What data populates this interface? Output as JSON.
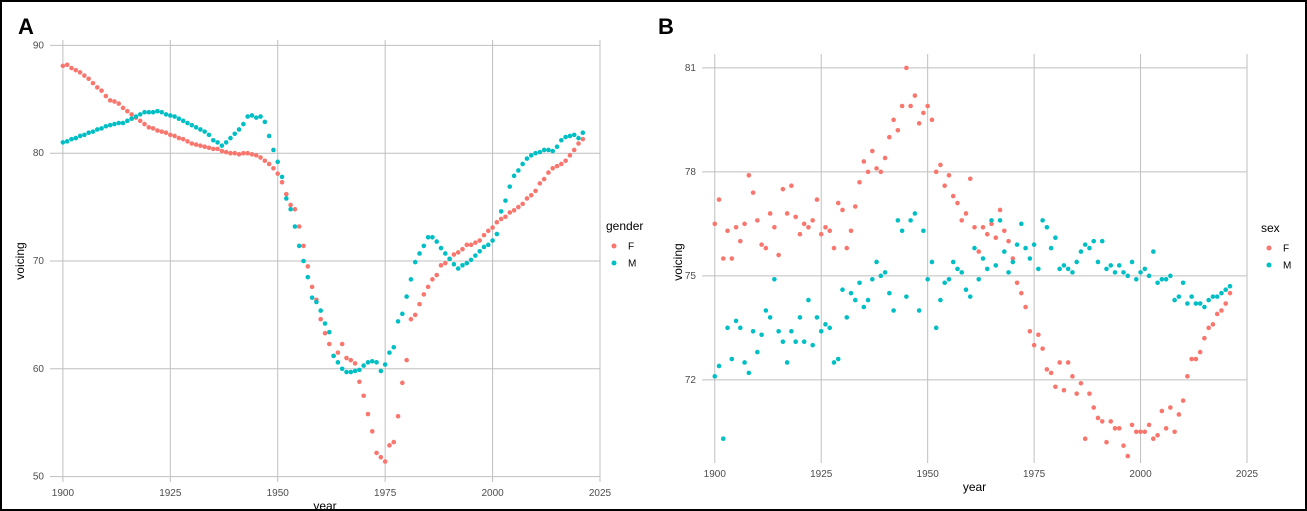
{
  "panels": {
    "a_label": "A",
    "b_label": "B"
  },
  "colors": {
    "F": "#F8766D",
    "M": "#00BFC4",
    "grid": "#bfbfbf"
  },
  "chart_data": [
    {
      "type": "scatter",
      "title": "",
      "xlabel": "year",
      "ylabel": "voicing",
      "xlim": [
        1897,
        2025
      ],
      "ylim": [
        49.5,
        90.5
      ],
      "xticks": [
        1900,
        1925,
        1950,
        1975,
        2000,
        2025
      ],
      "yticks": [
        50,
        60,
        70,
        80,
        90
      ],
      "grid": true,
      "legend": {
        "title": "gender",
        "position": "right",
        "entries": [
          "F",
          "M"
        ]
      },
      "series": [
        {
          "name": "F",
          "x": [
            1900,
            1901,
            1902,
            1903,
            1904,
            1905,
            1906,
            1907,
            1908,
            1909,
            1910,
            1911,
            1912,
            1913,
            1914,
            1915,
            1916,
            1917,
            1918,
            1919,
            1920,
            1921,
            1922,
            1923,
            1924,
            1925,
            1926,
            1927,
            1928,
            1929,
            1930,
            1931,
            1932,
            1933,
            1934,
            1935,
            1936,
            1937,
            1938,
            1939,
            1940,
            1941,
            1942,
            1943,
            1944,
            1945,
            1946,
            1947,
            1948,
            1949,
            1950,
            1951,
            1952,
            1953,
            1954,
            1955,
            1956,
            1957,
            1958,
            1959,
            1960,
            1961,
            1962,
            1963,
            1964,
            1965,
            1966,
            1967,
            1968,
            1969,
            1970,
            1971,
            1972,
            1973,
            1974,
            1975,
            1976,
            1977,
            1978,
            1979,
            1980,
            1981,
            1982,
            1983,
            1984,
            1985,
            1986,
            1987,
            1988,
            1989,
            1990,
            1991,
            1992,
            1993,
            1994,
            1995,
            1996,
            1997,
            1998,
            1999,
            2000,
            2001,
            2002,
            2003,
            2004,
            2005,
            2006,
            2007,
            2008,
            2009,
            2010,
            2011,
            2012,
            2013,
            2014,
            2015,
            2016,
            2017,
            2018,
            2019,
            2020,
            2021
          ],
          "y": [
            88.1,
            88.2,
            87.9,
            87.7,
            87.5,
            87.2,
            86.9,
            86.5,
            86.1,
            85.8,
            85.3,
            84.9,
            84.8,
            84.6,
            84.2,
            83.9,
            83.6,
            83.3,
            83.0,
            82.7,
            82.4,
            82.3,
            82.1,
            82.0,
            81.9,
            81.7,
            81.6,
            81.4,
            81.3,
            81.1,
            80.9,
            80.8,
            80.7,
            80.6,
            80.5,
            80.4,
            80.4,
            80.2,
            80.1,
            80.0,
            80.0,
            79.9,
            80.0,
            80.0,
            79.9,
            79.8,
            79.6,
            79.3,
            79.0,
            78.6,
            78.1,
            77.3,
            76.2,
            75.2,
            74.8,
            73.2,
            71.4,
            69.5,
            67.6,
            66.4,
            64.6,
            63.3,
            62.3,
            61.2,
            61.5,
            62.3,
            61.0,
            60.8,
            60.5,
            58.8,
            57.5,
            55.8,
            54.2,
            52.2,
            51.8,
            51.4,
            52.9,
            53.2,
            55.6,
            58.7,
            60.8,
            64.6,
            65.0,
            66.0,
            66.9,
            67.6,
            68.3,
            68.7,
            69.6,
            69.8,
            70.2,
            70.6,
            70.8,
            71.1,
            71.5,
            71.5,
            71.7,
            71.9,
            72.4,
            72.8,
            73.1,
            73.6,
            73.9,
            74.1,
            74.5,
            74.7,
            75.0,
            75.3,
            75.8,
            76.1,
            76.5,
            77.2,
            77.6,
            78.2,
            78.6,
            78.8,
            79.0,
            79.3,
            79.8,
            80.3,
            80.9,
            81.3
          ]
        },
        {
          "name": "M",
          "x": [
            1900,
            1901,
            1902,
            1903,
            1904,
            1905,
            1906,
            1907,
            1908,
            1909,
            1910,
            1911,
            1912,
            1913,
            1914,
            1915,
            1916,
            1917,
            1918,
            1919,
            1920,
            1921,
            1922,
            1923,
            1924,
            1925,
            1926,
            1927,
            1928,
            1929,
            1930,
            1931,
            1932,
            1933,
            1934,
            1935,
            1936,
            1937,
            1938,
            1939,
            1940,
            1941,
            1942,
            1943,
            1944,
            1945,
            1946,
            1947,
            1948,
            1949,
            1950,
            1951,
            1952,
            1953,
            1954,
            1955,
            1956,
            1957,
            1958,
            1959,
            1960,
            1961,
            1962,
            1963,
            1964,
            1965,
            1966,
            1967,
            1968,
            1969,
            1970,
            1971,
            1972,
            1973,
            1974,
            1975,
            1976,
            1977,
            1978,
            1979,
            1980,
            1981,
            1982,
            1983,
            1984,
            1985,
            1986,
            1987,
            1988,
            1989,
            1990,
            1991,
            1992,
            1993,
            1994,
            1995,
            1996,
            1997,
            1998,
            1999,
            2000,
            2001,
            2002,
            2003,
            2004,
            2005,
            2006,
            2007,
            2008,
            2009,
            2010,
            2011,
            2012,
            2013,
            2014,
            2015,
            2016,
            2017,
            2018,
            2019,
            2020,
            2021
          ],
          "y": [
            81.0,
            81.1,
            81.3,
            81.4,
            81.6,
            81.7,
            81.9,
            82.0,
            82.2,
            82.3,
            82.5,
            82.6,
            82.7,
            82.8,
            82.8,
            83.0,
            83.2,
            83.4,
            83.6,
            83.8,
            83.8,
            83.8,
            83.9,
            83.8,
            83.6,
            83.5,
            83.4,
            83.2,
            83.0,
            82.8,
            82.6,
            82.4,
            82.2,
            82.0,
            81.7,
            81.2,
            81.0,
            80.7,
            81.0,
            81.4,
            81.8,
            82.2,
            82.7,
            83.4,
            83.5,
            83.3,
            83.4,
            82.9,
            81.6,
            80.3,
            79.2,
            77.8,
            75.8,
            74.8,
            73.2,
            71.4,
            70.0,
            68.5,
            66.6,
            66.2,
            65.4,
            64.2,
            63.4,
            61.2,
            60.6,
            60.0,
            59.7,
            59.7,
            59.8,
            59.9,
            60.3,
            60.6,
            60.7,
            60.6,
            59.8,
            60.4,
            61.5,
            62.0,
            64.4,
            65.1,
            66.7,
            68.3,
            69.9,
            70.7,
            71.4,
            72.2,
            72.2,
            71.8,
            71.2,
            70.7,
            70.2,
            69.7,
            69.3,
            69.6,
            69.8,
            70.1,
            70.5,
            70.9,
            71.3,
            71.5,
            71.9,
            72.5,
            74.6,
            75.6,
            76.9,
            77.9,
            78.4,
            79.0,
            79.5,
            79.8,
            80.0,
            80.1,
            80.3,
            80.3,
            80.2,
            80.6,
            81.2,
            81.5,
            81.6,
            81.7,
            81.4,
            81.9
          ]
        }
      ]
    },
    {
      "type": "scatter",
      "title": "",
      "xlabel": "year",
      "ylabel": "voicing",
      "xlim": [
        1897,
        2025
      ],
      "ylim": [
        69.6,
        81.4
      ],
      "xticks": [
        1900,
        1925,
        1950,
        1975,
        2000,
        2025
      ],
      "yticks": [
        72,
        75,
        78,
        81
      ],
      "grid": true,
      "legend": {
        "title": "sex",
        "position": "right",
        "entries": [
          "F",
          "M"
        ]
      },
      "series": [
        {
          "name": "F",
          "x": [
            1900,
            1901,
            1902,
            1903,
            1904,
            1905,
            1906,
            1907,
            1908,
            1909,
            1910,
            1911,
            1912,
            1913,
            1914,
            1915,
            1916,
            1917,
            1918,
            1919,
            1920,
            1921,
            1922,
            1923,
            1924,
            1925,
            1926,
            1927,
            1928,
            1929,
            1930,
            1931,
            1932,
            1933,
            1934,
            1935,
            1936,
            1937,
            1938,
            1939,
            1940,
            1941,
            1942,
            1943,
            1944,
            1945,
            1946,
            1947,
            1948,
            1949,
            1950,
            1951,
            1952,
            1953,
            1954,
            1955,
            1956,
            1957,
            1958,
            1959,
            1960,
            1961,
            1962,
            1963,
            1964,
            1965,
            1966,
            1967,
            1968,
            1969,
            1970,
            1971,
            1972,
            1973,
            1974,
            1975,
            1976,
            1977,
            1978,
            1979,
            1980,
            1981,
            1982,
            1983,
            1984,
            1985,
            1986,
            1987,
            1988,
            1989,
            1990,
            1991,
            1992,
            1993,
            1994,
            1995,
            1996,
            1997,
            1998,
            1999,
            2000,
            2001,
            2002,
            2003,
            2004,
            2005,
            2006,
            2007,
            2008,
            2009,
            2010,
            2011,
            2012,
            2013,
            2014,
            2015,
            2016,
            2017,
            2018,
            2019,
            2020,
            2021
          ],
          "y": [
            76.5,
            77.2,
            75.5,
            76.3,
            75.5,
            76.4,
            76.0,
            76.5,
            77.9,
            77.4,
            76.6,
            75.9,
            75.8,
            76.8,
            76.4,
            75.6,
            77.5,
            76.8,
            77.6,
            76.7,
            76.2,
            76.5,
            76.4,
            76.6,
            77.2,
            76.2,
            76.4,
            76.3,
            75.8,
            77.1,
            76.9,
            75.8,
            76.3,
            77.0,
            77.7,
            78.3,
            78.0,
            78.6,
            78.1,
            78.0,
            78.4,
            79.0,
            79.5,
            79.2,
            79.9,
            81.0,
            79.9,
            80.2,
            79.4,
            79.7,
            79.9,
            79.5,
            78.0,
            78.2,
            77.6,
            77.9,
            77.3,
            77.1,
            76.6,
            76.8,
            77.8,
            76.4,
            75.7,
            76.4,
            76.2,
            76.5,
            76.1,
            76.9,
            76.3,
            76.0,
            75.5,
            74.8,
            74.5,
            74.1,
            73.4,
            73.0,
            73.3,
            72.9,
            72.3,
            72.2,
            71.8,
            72.5,
            71.7,
            72.5,
            72.1,
            71.6,
            71.9,
            70.3,
            71.6,
            71.2,
            70.9,
            70.8,
            70.2,
            70.8,
            70.6,
            70.6,
            70.1,
            69.8,
            70.7,
            70.5,
            70.5,
            70.5,
            70.7,
            70.3,
            70.4,
            71.1,
            70.6,
            71.2,
            70.5,
            71.0,
            71.4,
            72.1,
            72.6,
            72.6,
            72.8,
            73.2,
            73.5,
            73.6,
            73.9,
            74.0,
            74.2,
            74.5
          ]
        },
        {
          "name": "M",
          "x": [
            1900,
            1901,
            1902,
            1903,
            1904,
            1905,
            1906,
            1907,
            1908,
            1909,
            1910,
            1911,
            1912,
            1913,
            1914,
            1915,
            1916,
            1917,
            1918,
            1919,
            1920,
            1921,
            1922,
            1923,
            1924,
            1925,
            1926,
            1927,
            1928,
            1929,
            1930,
            1931,
            1932,
            1933,
            1934,
            1935,
            1936,
            1937,
            1938,
            1939,
            1940,
            1941,
            1942,
            1943,
            1944,
            1945,
            1946,
            1947,
            1948,
            1949,
            1950,
            1951,
            1952,
            1953,
            1954,
            1955,
            1956,
            1957,
            1958,
            1959,
            1960,
            1961,
            1962,
            1963,
            1964,
            1965,
            1966,
            1967,
            1968,
            1969,
            1970,
            1971,
            1972,
            1973,
            1974,
            1975,
            1976,
            1977,
            1978,
            1979,
            1980,
            1981,
            1982,
            1983,
            1984,
            1985,
            1986,
            1987,
            1988,
            1989,
            1990,
            1991,
            1992,
            1993,
            1994,
            1995,
            1996,
            1997,
            1998,
            1999,
            2000,
            2001,
            2002,
            2003,
            2004,
            2005,
            2006,
            2007,
            2008,
            2009,
            2010,
            2011,
            2012,
            2013,
            2014,
            2015,
            2016,
            2017,
            2018,
            2019,
            2020,
            2021
          ],
          "y": [
            72.1,
            72.4,
            70.3,
            73.5,
            72.6,
            73.7,
            73.5,
            72.5,
            72.2,
            73.4,
            72.8,
            73.3,
            74.0,
            73.8,
            74.9,
            73.4,
            73.1,
            72.5,
            73.4,
            73.1,
            73.8,
            73.1,
            74.3,
            73.0,
            73.8,
            73.4,
            73.6,
            73.5,
            72.5,
            72.6,
            74.6,
            73.8,
            74.5,
            74.3,
            74.8,
            74.1,
            74.3,
            74.9,
            75.4,
            75.0,
            75.1,
            74.5,
            74.0,
            76.6,
            76.3,
            74.4,
            76.6,
            76.8,
            74.0,
            76.3,
            74.9,
            75.4,
            73.5,
            74.3,
            74.8,
            74.9,
            75.4,
            75.2,
            75.1,
            74.6,
            74.4,
            75.8,
            74.9,
            75.5,
            75.2,
            76.6,
            75.3,
            76.6,
            75.7,
            75.1,
            75.4,
            75.9,
            76.5,
            75.8,
            75.5,
            75.9,
            75.2,
            76.6,
            76.4,
            75.8,
            76.1,
            75.2,
            75.3,
            75.2,
            75.1,
            75.4,
            75.7,
            75.9,
            75.8,
            76.0,
            75.4,
            76.0,
            75.2,
            75.3,
            75.1,
            75.3,
            75.1,
            75.0,
            75.4,
            74.9,
            75.1,
            75.2,
            75.0,
            75.7,
            74.8,
            74.9,
            74.9,
            75.0,
            74.3,
            74.4,
            74.8,
            74.2,
            74.4,
            74.2,
            74.2,
            74.1,
            74.3,
            74.4,
            74.4,
            74.5,
            74.6,
            74.7
          ]
        }
      ]
    }
  ]
}
